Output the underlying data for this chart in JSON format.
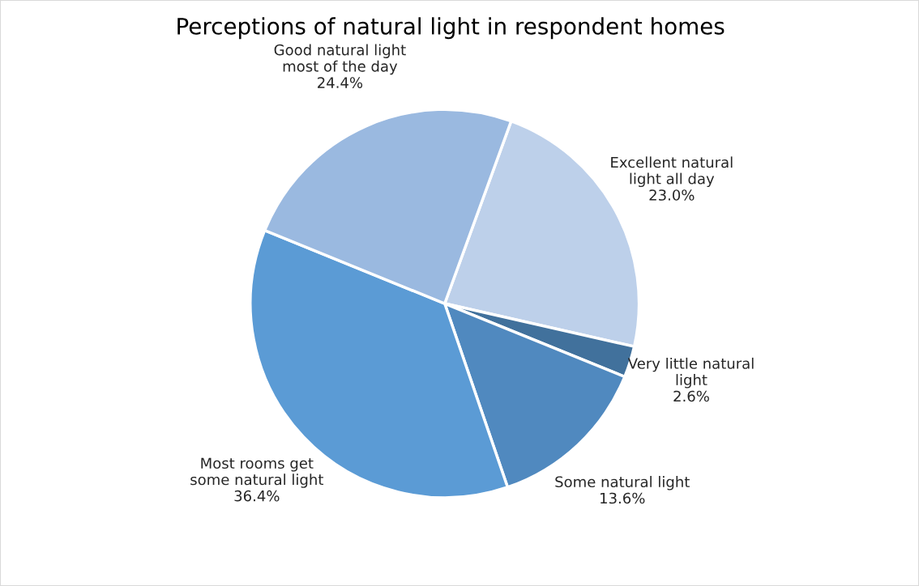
{
  "chart_data": {
    "type": "pie",
    "title": "Perceptions of natural light in respondent homes",
    "categories": [
      "Excellent natural\nlight all day",
      "Very little natural\nlight",
      "Some natural light",
      "Most rooms get\nsome natural light",
      "Good natural light\nmost of the day"
    ],
    "values": [
      23.0,
      2.6,
      13.6,
      36.4,
      24.4
    ],
    "value_labels": [
      "23.0%",
      "2.6%",
      "13.6%",
      "36.4%",
      "24.4%"
    ],
    "colors": [
      "#bdd0ea",
      "#41719c",
      "#5089bf",
      "#5b9bd5",
      "#9ab9e0"
    ],
    "legend": false
  }
}
